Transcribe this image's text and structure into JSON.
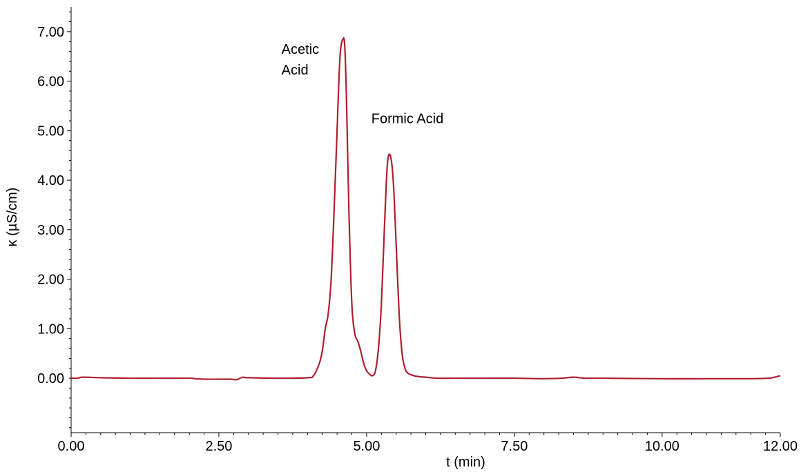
{
  "chart_data": {
    "type": "line",
    "title": "",
    "xlabel": "t (min)",
    "ylabel": "κ (µS/cm)",
    "xlim": [
      0,
      12
    ],
    "ylim": [
      -1.1,
      7.5
    ],
    "grid": false,
    "legend": "none",
    "line_color": "#b01e2e",
    "x_ticks": [
      {
        "value": 0.0,
        "label": "0.00"
      },
      {
        "value": 2.5,
        "label": "2.50"
      },
      {
        "value": 5.0,
        "label": "5.00"
      },
      {
        "value": 7.5,
        "label": "7.50"
      },
      {
        "value": 10.0,
        "label": "10.00"
      },
      {
        "value": 12.0,
        "label": "12.00"
      }
    ],
    "y_ticks": [
      {
        "value": 0.0,
        "label": "0.00"
      },
      {
        "value": 1.0,
        "label": "1.00"
      },
      {
        "value": 2.0,
        "label": "2.00"
      },
      {
        "value": 3.0,
        "label": "3.00"
      },
      {
        "value": 4.0,
        "label": "4.00"
      },
      {
        "value": 5.0,
        "label": "5.00"
      },
      {
        "value": 6.0,
        "label": "6.00"
      },
      {
        "value": 7.0,
        "label": "7.00"
      }
    ],
    "annotations": [
      {
        "lines": [
          "Acetic",
          "Acid"
        ],
        "x": 3.56,
        "y": 6.55
      },
      {
        "lines": [
          "Formic Acid"
        ],
        "x": 5.08,
        "y": 5.15
      }
    ],
    "series": [
      {
        "x": [
          0.0,
          0.1,
          0.2,
          0.5,
          1.0,
          1.5,
          2.0,
          2.1,
          2.3,
          2.5,
          2.7,
          2.8,
          2.9,
          3.0,
          3.5,
          4.0,
          4.1,
          4.2,
          4.25,
          4.3,
          4.35,
          4.4,
          4.45,
          4.5,
          4.55,
          4.6,
          4.63,
          4.66,
          4.7,
          4.75,
          4.8,
          4.85,
          4.9,
          4.95,
          5.0,
          5.05,
          5.1,
          5.15,
          5.2,
          5.25,
          5.3,
          5.35,
          5.4,
          5.45,
          5.5,
          5.55,
          5.6,
          5.65,
          5.7,
          5.8,
          5.9,
          6.0,
          6.2,
          6.5,
          7.0,
          7.5,
          8.0,
          8.3,
          8.5,
          8.7,
          9.0,
          10.0,
          11.0,
          11.5,
          11.8,
          11.9,
          12.0
        ],
        "y": [
          0.0,
          0.0,
          0.02,
          0.01,
          0.0,
          0.0,
          0.0,
          -0.01,
          -0.02,
          -0.02,
          -0.02,
          -0.03,
          0.02,
          0.01,
          0.0,
          0.01,
          0.05,
          0.3,
          0.55,
          1.0,
          1.3,
          2.0,
          3.4,
          5.0,
          6.5,
          6.85,
          6.7,
          5.6,
          3.4,
          1.5,
          0.9,
          0.75,
          0.55,
          0.3,
          0.15,
          0.08,
          0.05,
          0.15,
          0.6,
          1.5,
          3.0,
          4.3,
          4.5,
          4.0,
          2.7,
          1.3,
          0.5,
          0.2,
          0.1,
          0.05,
          0.03,
          0.02,
          0.0,
          0.0,
          0.0,
          0.0,
          -0.01,
          0.0,
          0.02,
          0.0,
          0.0,
          -0.01,
          -0.01,
          -0.01,
          0.0,
          0.02,
          0.05
        ]
      }
    ]
  }
}
